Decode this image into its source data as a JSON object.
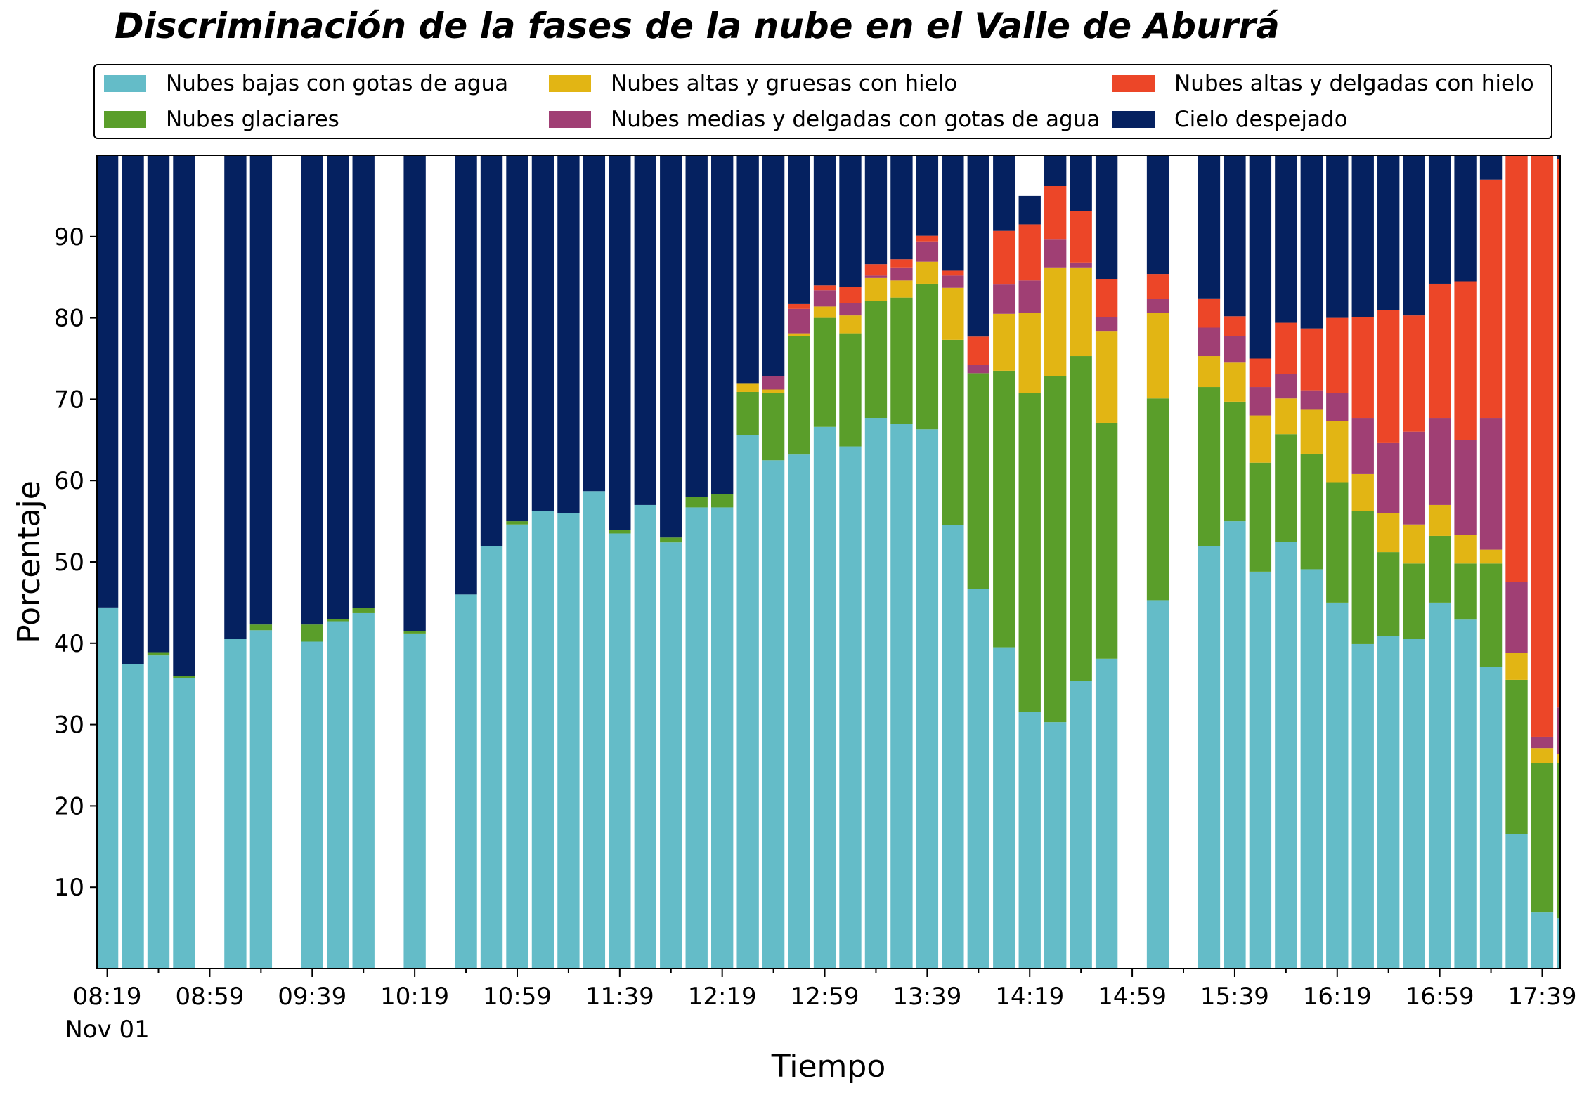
{
  "chart_data": {
    "type": "bar",
    "stacked": true,
    "title": "Discriminación de la fases de la nube en el Valle de Aburrá",
    "xlabel": "Tiempo",
    "ylabel": "Porcentaje",
    "ylim": [
      0,
      100
    ],
    "yticks": [
      10,
      20,
      30,
      40,
      50,
      60,
      70,
      80,
      90
    ],
    "xlim_minutes": [
      495,
      1066
    ],
    "x_start_minute": 499,
    "x_step_minutes": 10,
    "xtick_labels": [
      {
        "minute": 499,
        "label": "08:19",
        "sub": "Nov 01"
      },
      {
        "minute": 539,
        "label": "08:59"
      },
      {
        "minute": 579,
        "label": "09:39"
      },
      {
        "minute": 619,
        "label": "10:19"
      },
      {
        "minute": 659,
        "label": "10:59"
      },
      {
        "minute": 699,
        "label": "11:39"
      },
      {
        "minute": 739,
        "label": "12:19"
      },
      {
        "minute": 779,
        "label": "12:59"
      },
      {
        "minute": 819,
        "label": "13:39"
      },
      {
        "minute": 859,
        "label": "14:19"
      },
      {
        "minute": 899,
        "label": "14:59"
      },
      {
        "minute": 939,
        "label": "15:39"
      },
      {
        "minute": 979,
        "label": "16:19"
      },
      {
        "minute": 1019,
        "label": "16:59"
      },
      {
        "minute": 1059,
        "label": "17:39"
      }
    ],
    "grid": false,
    "legend": "top",
    "series": [
      {
        "name": "Nubes bajas con gotas de agua",
        "color": "#64bcc8",
        "values": [
          44.4,
          37.4,
          38.5,
          35.7,
          null,
          40.5,
          41.6,
          null,
          40.2,
          42.7,
          43.7,
          null,
          41.2,
          null,
          46.0,
          51.9,
          54.6,
          56.3,
          56.0,
          58.7,
          53.5,
          57.0,
          52.4,
          56.7,
          56.7,
          65.6,
          62.5,
          63.2,
          66.6,
          64.2,
          67.7,
          67.0,
          66.3,
          54.5,
          46.7,
          39.5,
          31.6,
          30.3,
          35.4,
          38.1,
          null,
          45.3,
          null,
          51.9,
          55.0,
          48.8,
          52.5,
          49.1,
          45.0,
          39.9,
          40.9,
          40.5,
          45.0,
          42.9,
          37.1,
          16.5,
          6.9,
          6.2
        ]
      },
      {
        "name": "Nubes glaciares",
        "color": "#5a9e2a",
        "values": [
          0,
          0,
          0.4,
          0.3,
          null,
          0,
          0.7,
          null,
          2.1,
          0.3,
          0.6,
          null,
          0.3,
          null,
          0,
          0,
          0.4,
          0,
          0,
          0,
          0.4,
          0,
          0.6,
          1.3,
          1.6,
          5.3,
          8.3,
          14.6,
          13.4,
          13.9,
          14.4,
          15.5,
          17.9,
          22.8,
          26.5,
          34.0,
          39.2,
          42.5,
          39.9,
          29.0,
          null,
          24.8,
          null,
          19.6,
          14.7,
          13.4,
          13.2,
          14.2,
          14.8,
          16.4,
          10.3,
          9.3,
          8.2,
          6.9,
          12.7,
          19.0,
          18.4,
          19.1
        ]
      },
      {
        "name": "Nubes altas y gruesas con hielo",
        "color": "#e2b514",
        "values": [
          0,
          0,
          0,
          0,
          null,
          0,
          0,
          null,
          0,
          0,
          0,
          null,
          0,
          null,
          0,
          0,
          0,
          0,
          0,
          0,
          0,
          0,
          0,
          0,
          0,
          1.0,
          0.4,
          0.3,
          1.4,
          2.2,
          2.8,
          2.1,
          2.7,
          6.4,
          0,
          7.0,
          9.8,
          13.4,
          10.9,
          11.3,
          null,
          10.5,
          null,
          3.8,
          4.8,
          5.8,
          4.4,
          5.4,
          7.5,
          4.5,
          4.8,
          4.8,
          3.8,
          3.5,
          1.7,
          3.3,
          1.8,
          1.1
        ]
      },
      {
        "name": "Nubes medias y delgadas con gotas de agua",
        "color": "#a03f74",
        "values": [
          0,
          0,
          0,
          0,
          null,
          0,
          0,
          null,
          0,
          0,
          0,
          null,
          0,
          null,
          0,
          0,
          0,
          0,
          0,
          0,
          0,
          0,
          0,
          0,
          0,
          0,
          1.6,
          3.0,
          2.0,
          1.5,
          0.3,
          1.6,
          2.5,
          1.5,
          1.0,
          3.6,
          4.0,
          3.5,
          0.6,
          1.7,
          null,
          1.7,
          null,
          3.5,
          3.3,
          3.5,
          3.0,
          2.4,
          3.5,
          6.9,
          8.6,
          11.4,
          10.7,
          11.7,
          16.2,
          8.7,
          1.4,
          5.7
        ]
      },
      {
        "name": "Nubes altas y delgadas con hielo",
        "color": "#ec4628",
        "values": [
          0,
          0,
          0,
          0,
          null,
          0,
          0,
          null,
          0,
          0,
          0,
          null,
          0,
          null,
          0,
          0,
          0,
          0,
          0,
          0,
          0,
          0,
          0,
          0,
          0,
          0,
          0,
          0.6,
          0.6,
          2.0,
          1.4,
          1.0,
          0.7,
          0.6,
          3.5,
          6.6,
          6.9,
          6.5,
          6.3,
          4.7,
          null,
          3.1,
          null,
          3.6,
          2.4,
          3.5,
          6.3,
          7.6,
          9.2,
          12.4,
          16.4,
          14.3,
          16.5,
          19.5,
          29.3,
          52.6,
          71.5,
          67.4
        ]
      },
      {
        "name": "Cielo despejado",
        "color": "#052160",
        "values": [
          55.6,
          62.6,
          61.1,
          64.0,
          null,
          59.5,
          57.7,
          null,
          57.7,
          57.0,
          55.7,
          null,
          58.5,
          null,
          54.0,
          48.1,
          45.0,
          43.7,
          44.0,
          41.3,
          46.1,
          43.0,
          47.0,
          42.0,
          41.7,
          28.1,
          27.2,
          18.3,
          16.0,
          16.2,
          13.4,
          12.8,
          9.9,
          14.2,
          22.3,
          9.3,
          3.5,
          3.8,
          6.9,
          15.2,
          null,
          14.6,
          null,
          17.6,
          19.8,
          25.0,
          20.6,
          21.3,
          20.0,
          19.9,
          19.0,
          19.7,
          15.8,
          15.5,
          3.0,
          0,
          0,
          0.5
        ]
      }
    ]
  }
}
